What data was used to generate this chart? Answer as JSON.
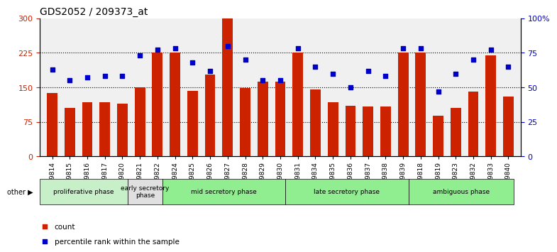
{
  "title": "GDS2052 / 209373_at",
  "samples": [
    "GSM109814",
    "GSM109815",
    "GSM109816",
    "GSM109817",
    "GSM109820",
    "GSM109821",
    "GSM109822",
    "GSM109824",
    "GSM109825",
    "GSM109826",
    "GSM109827",
    "GSM109828",
    "GSM109829",
    "GSM109830",
    "GSM109831",
    "GSM109834",
    "GSM109835",
    "GSM109836",
    "GSM109837",
    "GSM109838",
    "GSM109839",
    "GSM109818",
    "GSM109819",
    "GSM109823",
    "GSM109832",
    "GSM109833",
    "GSM109840"
  ],
  "counts": [
    137,
    105,
    118,
    118,
    115,
    150,
    225,
    225,
    143,
    178,
    300,
    148,
    163,
    163,
    225,
    145,
    118,
    110,
    108,
    108,
    225,
    225,
    88,
    105,
    140,
    220,
    130
  ],
  "percentiles": [
    63,
    55,
    57,
    58,
    58,
    73,
    77,
    78,
    68,
    62,
    80,
    70,
    55,
    55,
    78,
    65,
    60,
    50,
    62,
    58,
    78,
    78,
    47,
    60,
    70,
    77,
    65
  ],
  "phases": [
    {
      "label": "proliferative phase",
      "start": 0,
      "end": 5,
      "color": "#c8f0c8"
    },
    {
      "label": "early secretory\nphase",
      "start": 5,
      "end": 7,
      "color": "#e0e0e0"
    },
    {
      "label": "mid secretory phase",
      "start": 7,
      "end": 14,
      "color": "#90ee90"
    },
    {
      "label": "late secretory phase",
      "start": 14,
      "end": 21,
      "color": "#90ee90"
    },
    {
      "label": "ambiguous phase",
      "start": 21,
      "end": 27,
      "color": "#90ee90"
    }
  ],
  "bar_color": "#cc2200",
  "dot_color": "#0000cc",
  "ylim_left": [
    0,
    300
  ],
  "ylim_right": [
    0,
    100
  ],
  "left_yticks": [
    0,
    75,
    150,
    225,
    300
  ],
  "right_yticks": [
    0,
    25,
    50,
    75,
    100
  ],
  "right_yticklabels": [
    "0",
    "25",
    "50",
    "75",
    "100%"
  ],
  "background_color": "#ffffff"
}
